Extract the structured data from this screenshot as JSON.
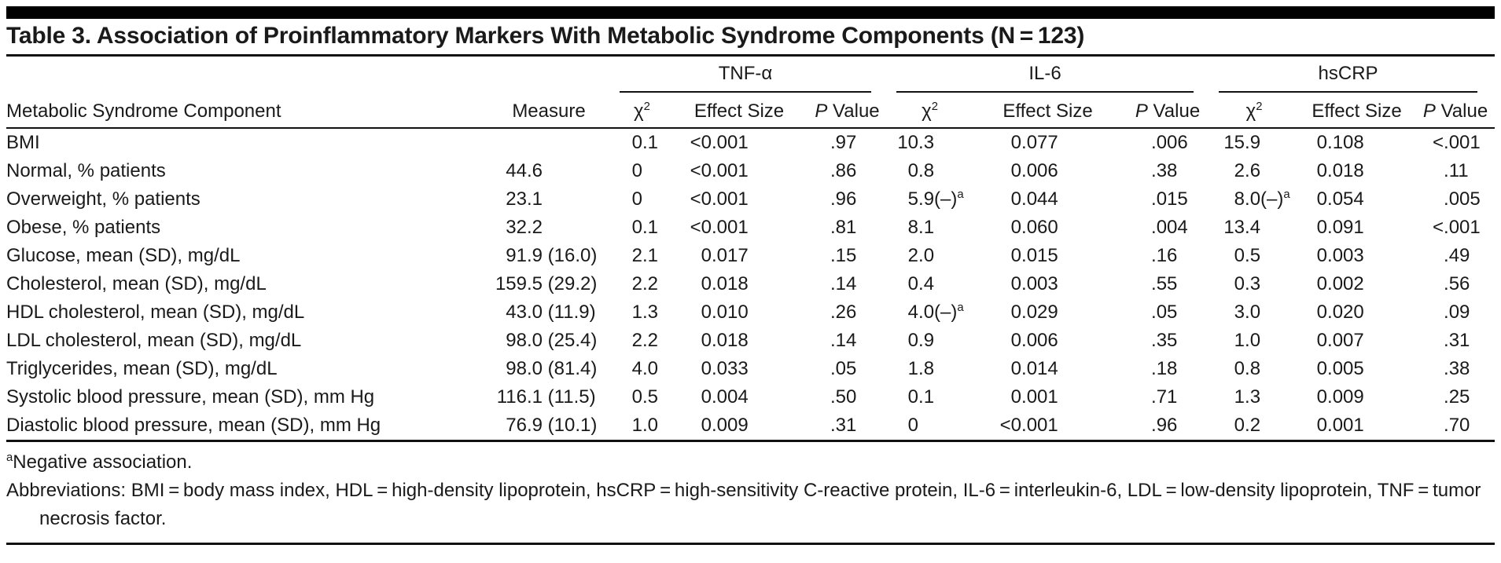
{
  "colors": {
    "accent_bar": "#000000",
    "rule": "#111111",
    "text": "#1a1a1a",
    "background": "#ffffff"
  },
  "table": {
    "title": "Table 3. Association of Proinflammatory Markers With Metabolic Syndrome Components (N = 123)",
    "col1_header": "Metabolic Syndrome Component",
    "col2_header": "Measure",
    "groups": [
      {
        "label": "TNF-α"
      },
      {
        "label": "IL-6"
      },
      {
        "label": "hsCRP"
      }
    ],
    "sub_headers": {
      "chi2": "χ^2",
      "effect_size": "Effect Size",
      "p_value": "P Value"
    },
    "rows": [
      {
        "component": "BMI",
        "measure": "",
        "tnf": {
          "chi2": "0.1",
          "effect_size": "<0.001",
          "p_value": ".97"
        },
        "il6": {
          "chi2": "10.3",
          "effect_size": "0.077",
          "p_value": ".006"
        },
        "hscrp": {
          "chi2": "15.9",
          "effect_size": "0.108",
          "p_value": "<.001"
        }
      },
      {
        "component": "Normal, % patients",
        "measure": "44.6",
        "tnf": {
          "chi2": "0",
          "effect_size": "<0.001",
          "p_value": ".86"
        },
        "il6": {
          "chi2": "0.8",
          "effect_size": "0.006",
          "p_value": ".38"
        },
        "hscrp": {
          "chi2": "2.6",
          "effect_size": "0.018",
          "p_value": ".11"
        }
      },
      {
        "component": "Overweight, % patients",
        "measure": "23.1",
        "tnf": {
          "chi2": "0",
          "effect_size": "<0.001",
          "p_value": ".96"
        },
        "il6": {
          "chi2": "5.9(–)^a",
          "effect_size": "0.044",
          "p_value": ".015"
        },
        "hscrp": {
          "chi2": "8.0(–)^a",
          "effect_size": "0.054",
          "p_value": ".005"
        }
      },
      {
        "component": "Obese, % patients",
        "measure": "32.2",
        "tnf": {
          "chi2": "0.1",
          "effect_size": "<0.001",
          "p_value": ".81"
        },
        "il6": {
          "chi2": "8.1",
          "effect_size": "0.060",
          "p_value": ".004"
        },
        "hscrp": {
          "chi2": "13.4",
          "effect_size": "0.091",
          "p_value": "<.001"
        }
      },
      {
        "component": "Glucose, mean (SD), mg/dL",
        "measure": "91.9 (16.0)",
        "tnf": {
          "chi2": "2.1",
          "effect_size": "0.017",
          "p_value": ".15"
        },
        "il6": {
          "chi2": "2.0",
          "effect_size": "0.015",
          "p_value": ".16"
        },
        "hscrp": {
          "chi2": "0.5",
          "effect_size": "0.003",
          "p_value": ".49"
        }
      },
      {
        "component": "Cholesterol, mean (SD), mg/dL",
        "measure": "159.5 (29.2)",
        "tnf": {
          "chi2": "2.2",
          "effect_size": "0.018",
          "p_value": ".14"
        },
        "il6": {
          "chi2": "0.4",
          "effect_size": "0.003",
          "p_value": ".55"
        },
        "hscrp": {
          "chi2": "0.3",
          "effect_size": "0.002",
          "p_value": ".56"
        }
      },
      {
        "component": "HDL cholesterol, mean (SD), mg/dL",
        "measure": "43.0 (11.9)",
        "tnf": {
          "chi2": "1.3",
          "effect_size": "0.010",
          "p_value": ".26"
        },
        "il6": {
          "chi2": "4.0(–)^a",
          "effect_size": "0.029",
          "p_value": ".05"
        },
        "hscrp": {
          "chi2": "3.0",
          "effect_size": "0.020",
          "p_value": ".09"
        }
      },
      {
        "component": "LDL cholesterol, mean (SD), mg/dL",
        "measure": "98.0 (25.4)",
        "tnf": {
          "chi2": "2.2",
          "effect_size": "0.018",
          "p_value": ".14"
        },
        "il6": {
          "chi2": "0.9",
          "effect_size": "0.006",
          "p_value": ".35"
        },
        "hscrp": {
          "chi2": "1.0",
          "effect_size": "0.007",
          "p_value": ".31"
        }
      },
      {
        "component": "Triglycerides, mean (SD), mg/dL",
        "measure": "98.0 (81.4)",
        "tnf": {
          "chi2": "4.0",
          "effect_size": "0.033",
          "p_value": ".05"
        },
        "il6": {
          "chi2": "1.8",
          "effect_size": "0.014",
          "p_value": ".18"
        },
        "hscrp": {
          "chi2": "0.8",
          "effect_size": "0.005",
          "p_value": ".38"
        }
      },
      {
        "component": "Systolic blood pressure, mean (SD), mm Hg",
        "measure": "116.1 (11.5)",
        "tnf": {
          "chi2": "0.5",
          "effect_size": "0.004",
          "p_value": ".50"
        },
        "il6": {
          "chi2": "0.1",
          "effect_size": "0.001",
          "p_value": ".71"
        },
        "hscrp": {
          "chi2": "1.3",
          "effect_size": "0.009",
          "p_value": ".25"
        }
      },
      {
        "component": "Diastolic blood pressure, mean (SD), mm Hg",
        "measure": "76.9 (10.1)",
        "tnf": {
          "chi2": "1.0",
          "effect_size": "0.009",
          "p_value": ".31"
        },
        "il6": {
          "chi2": "0",
          "effect_size": "<0.001",
          "p_value": ".96"
        },
        "hscrp": {
          "chi2": "0.2",
          "effect_size": "0.001",
          "p_value": ".70"
        }
      }
    ],
    "footnotes": [
      "^aNegative association.",
      "Abbreviations: BMI = body mass index, HDL = high-density lipoprotein, hsCRP = high-sensitivity C-reactive protein, IL-6 = interleukin-6, LDL = low-density lipoprotein, TNF = tumor necrosis factor."
    ]
  }
}
